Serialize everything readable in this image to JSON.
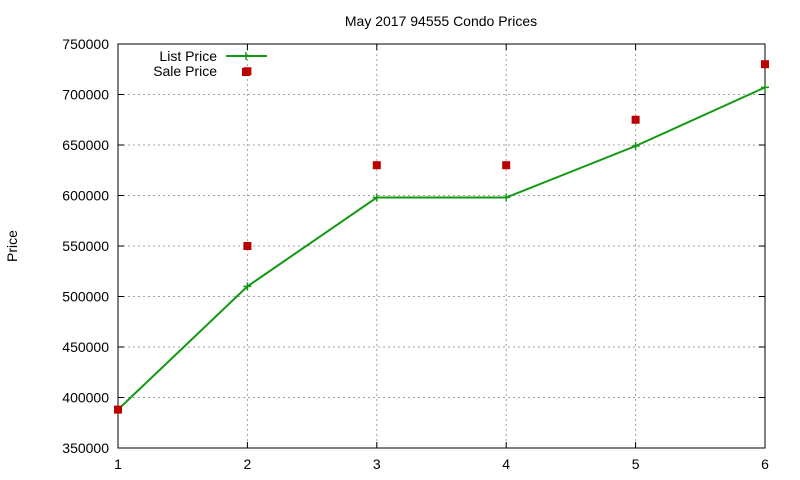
{
  "chart_data": {
    "type": "line",
    "title": "May 2017 94555 Condo Prices",
    "xlabel": "",
    "ylabel": "Price",
    "x": [
      1,
      2,
      3,
      4,
      5,
      6
    ],
    "xlim": [
      1,
      6
    ],
    "ylim": [
      350000,
      750000
    ],
    "x_ticks": [
      "1",
      "2",
      "3",
      "4",
      "5",
      "6"
    ],
    "y_ticks": [
      "350000",
      "400000",
      "450000",
      "500000",
      "550000",
      "600000",
      "650000",
      "700000",
      "750000"
    ],
    "grid": true,
    "legend_position": "top-left",
    "series": [
      {
        "name": "List Price",
        "style": "line-with-plus-markers",
        "color": "#119911",
        "values": [
          388000,
          510000,
          598000,
          598000,
          649000,
          707000
        ]
      },
      {
        "name": "Sale Price",
        "style": "square-markers",
        "color": "#bb0000",
        "values": [
          388000,
          550000,
          630000,
          630000,
          675000,
          730000
        ]
      }
    ],
    "extra_points": [
      {
        "series": "Sale Price",
        "x": 2,
        "y": 723000
      }
    ]
  }
}
